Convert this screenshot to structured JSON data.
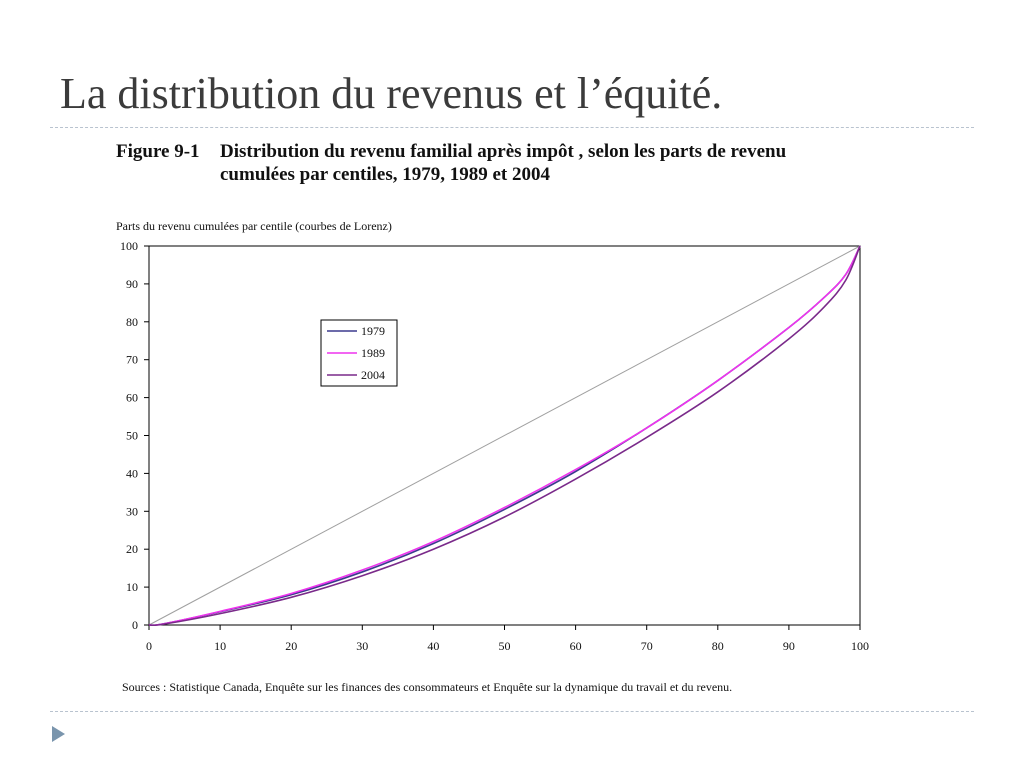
{
  "slide": {
    "title": "La distribution du revenus et l’équité."
  },
  "figure": {
    "number": "Figure 9-1",
    "caption_line1": "Distribution du revenu familial après impôt , selon les parts de revenu",
    "caption_line2": "cumulées par centiles, 1979, 1989 et 2004",
    "sources": "Sources : Statistique Canada, Enquête sur les finances des consommateurs et Enquête sur la dynamique du travail et du revenu."
  },
  "chart_data": {
    "type": "line",
    "title": "",
    "ylabel": "Parts du revenu cumulées par centile (courbes de Lorenz)",
    "xlabel": "",
    "xlim": [
      0,
      100
    ],
    "ylim": [
      0,
      100
    ],
    "xticks": [
      0,
      10,
      20,
      30,
      40,
      50,
      60,
      70,
      80,
      90,
      100
    ],
    "yticks": [
      0,
      10,
      20,
      30,
      40,
      50,
      60,
      70,
      80,
      90,
      100
    ],
    "legend_position": "upper-left",
    "grid": false,
    "x": [
      0,
      2,
      10,
      20,
      30,
      40,
      50,
      60,
      70,
      80,
      90,
      95,
      98,
      100
    ],
    "series": [
      {
        "name": "1979",
        "color": "#3c3a8e",
        "values": [
          0,
          0.3,
          3.5,
          8.0,
          14.0,
          21.5,
          30.5,
          40.5,
          52.0,
          64.5,
          78.5,
          86.5,
          92.5,
          100
        ]
      },
      {
        "name": "1989",
        "color": "#ee33ee",
        "values": [
          0,
          0.3,
          3.6,
          8.3,
          14.5,
          22.0,
          31.0,
          41.0,
          52.0,
          64.5,
          78.5,
          86.5,
          92.5,
          100
        ]
      },
      {
        "name": "2004",
        "color": "#7a2a8a",
        "values": [
          0,
          0.2,
          3.0,
          7.3,
          13.0,
          20.0,
          28.5,
          38.5,
          49.5,
          61.5,
          75.5,
          84.0,
          91.0,
          100
        ]
      }
    ],
    "equality_line": {
      "color": "#a0a0a0",
      "x": [
        0,
        100
      ],
      "values": [
        0,
        100
      ]
    }
  }
}
